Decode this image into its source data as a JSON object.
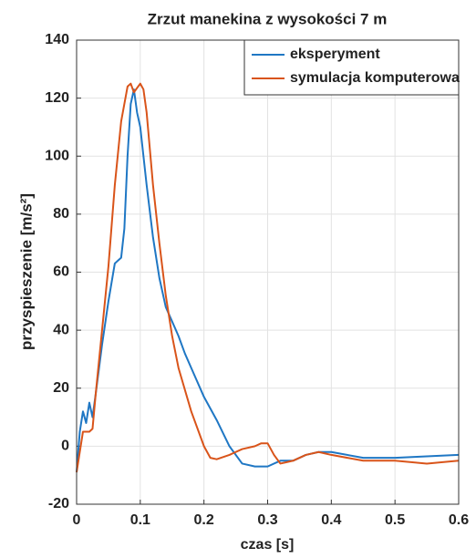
{
  "chart_data": {
    "type": "line",
    "title": "Zrzut manekina z wysokości 7 m",
    "x_label": "czas [s]",
    "y_label": "przyspieszenie [m/s²]",
    "xlim": [
      0,
      0.6
    ],
    "xticks": [
      0,
      0.1,
      0.2,
      0.3,
      0.4,
      0.5,
      0.6
    ],
    "ylim": [
      -20,
      140
    ],
    "yticks": [
      -20,
      0,
      20,
      40,
      60,
      80,
      100,
      120,
      140
    ],
    "grid": true,
    "legend": "upper right",
    "series": [
      {
        "name": "eksperyment",
        "color": "#1f77c4",
        "x": [
          0,
          0.005,
          0.01,
          0.015,
          0.02,
          0.025,
          0.03,
          0.04,
          0.05,
          0.06,
          0.07,
          0.075,
          0.08,
          0.085,
          0.09,
          0.095,
          0.1,
          0.11,
          0.12,
          0.13,
          0.14,
          0.15,
          0.16,
          0.17,
          0.18,
          0.2,
          0.22,
          0.24,
          0.26,
          0.28,
          0.3,
          0.32,
          0.34,
          0.36,
          0.38,
          0.4,
          0.45,
          0.5,
          0.55,
          0.6
        ],
        "values": [
          -9,
          5,
          12,
          8,
          15,
          10,
          18,
          35,
          50,
          63,
          65,
          75,
          100,
          118,
          123,
          115,
          110,
          90,
          72,
          58,
          48,
          43,
          38,
          32,
          27,
          17,
          9,
          0,
          -6,
          -7,
          -7,
          -5,
          -5,
          -3,
          -2,
          -2,
          -4,
          -4,
          -3.5,
          -3
        ]
      },
      {
        "name": "symulacja komputerowa",
        "color": "#d9541a",
        "x": [
          0,
          0.01,
          0.02,
          0.025,
          0.03,
          0.04,
          0.05,
          0.06,
          0.07,
          0.08,
          0.085,
          0.09,
          0.1,
          0.105,
          0.11,
          0.12,
          0.13,
          0.14,
          0.15,
          0.16,
          0.18,
          0.2,
          0.21,
          0.22,
          0.24,
          0.26,
          0.28,
          0.29,
          0.3,
          0.31,
          0.32,
          0.34,
          0.36,
          0.38,
          0.4,
          0.45,
          0.5,
          0.55,
          0.6
        ],
        "values": [
          -9,
          5,
          5,
          6,
          18,
          40,
          62,
          90,
          112,
          124,
          125,
          122,
          125,
          123,
          115,
          90,
          70,
          52,
          38,
          27,
          12,
          0,
          -4,
          -4.5,
          -3,
          -1,
          0,
          1,
          1,
          -3,
          -6,
          -5,
          -3,
          -2,
          -3,
          -5,
          -5,
          -6,
          -5
        ]
      }
    ]
  }
}
